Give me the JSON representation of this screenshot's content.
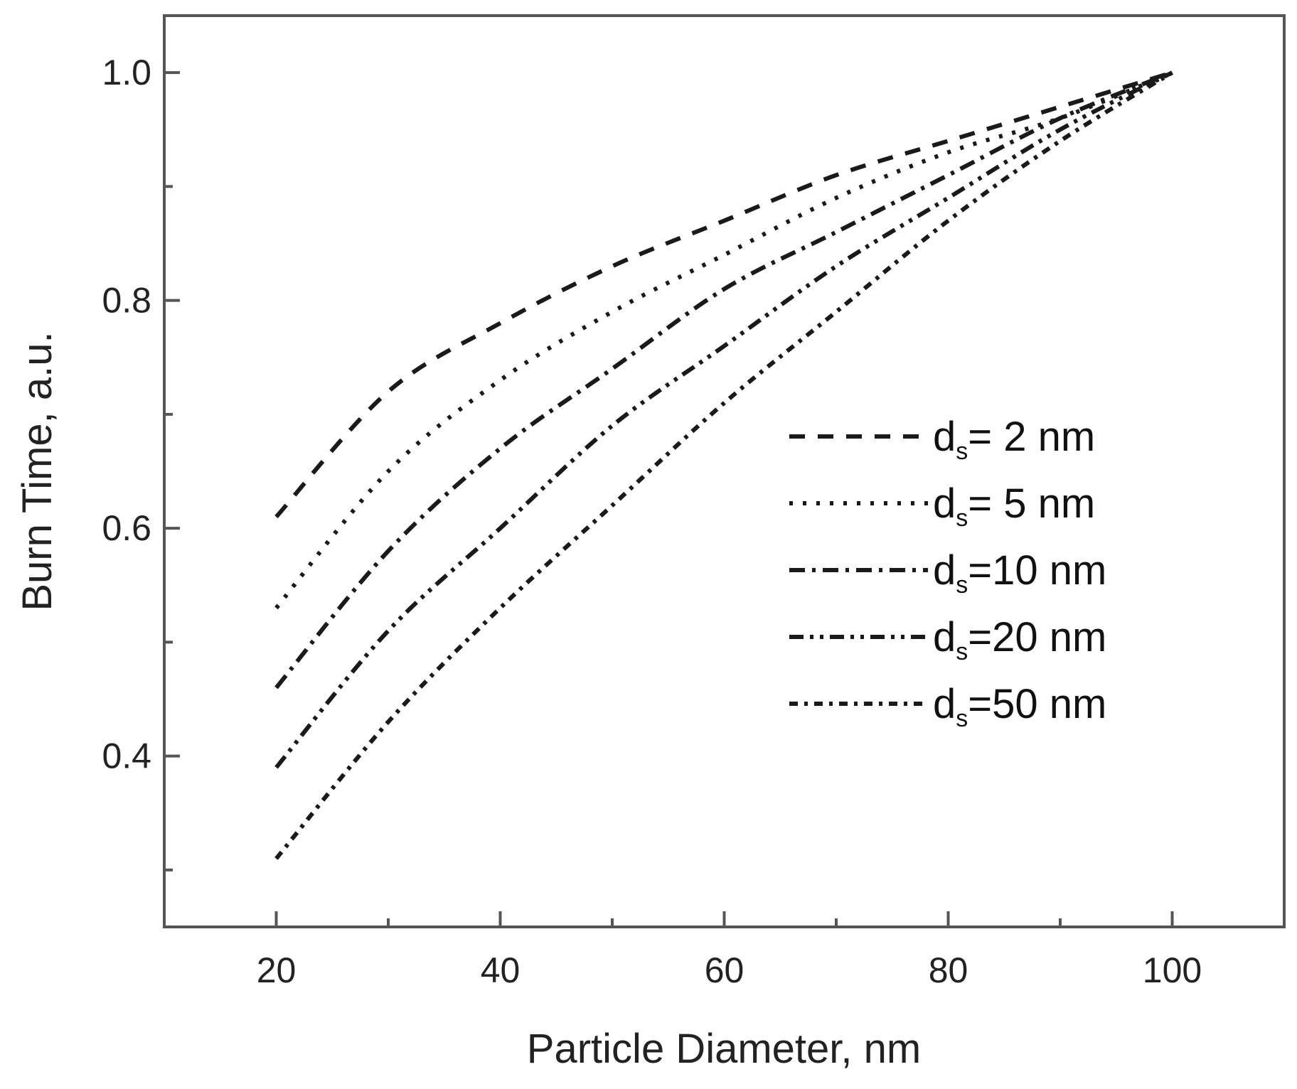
{
  "chart_data": {
    "type": "line",
    "title": "",
    "xlabel": "Particle Diameter, nm",
    "ylabel": "Burn Time, a.u.",
    "xlim": [
      10,
      110
    ],
    "ylim": [
      0.25,
      1.05
    ],
    "x_ticks": [
      20,
      40,
      60,
      80,
      100
    ],
    "x_tick_labels": [
      "20",
      "40",
      "60",
      "80",
      "100"
    ],
    "x_minor_ticks": [
      30,
      50,
      70,
      90
    ],
    "y_ticks": [
      0.4,
      0.6,
      0.8,
      1.0
    ],
    "y_tick_labels": [
      "0.4",
      "0.6",
      "0.8",
      "1.0"
    ],
    "y_minor_ticks": [
      0.3,
      0.5,
      0.7,
      0.9
    ],
    "grid": false,
    "legend_position": "center-right",
    "x": [
      20,
      30,
      40,
      50,
      60,
      70,
      80,
      90,
      100
    ],
    "series": [
      {
        "name": "d =  2 nm",
        "subscript": "s",
        "style": "dash",
        "values": [
          0.61,
          0.72,
          0.78,
          0.83,
          0.87,
          0.91,
          0.94,
          0.97,
          1.0
        ]
      },
      {
        "name": "d =  5 nm",
        "subscript": "s",
        "style": "dot",
        "values": [
          0.53,
          0.65,
          0.73,
          0.79,
          0.84,
          0.89,
          0.93,
          0.96,
          1.0
        ]
      },
      {
        "name": "d =10 nm",
        "subscript": "s",
        "style": "dashdot",
        "values": [
          0.46,
          0.58,
          0.67,
          0.74,
          0.81,
          0.86,
          0.91,
          0.96,
          1.0
        ]
      },
      {
        "name": "d =20 nm",
        "subscript": "s",
        "style": "dashdotdot",
        "values": [
          0.39,
          0.51,
          0.6,
          0.69,
          0.76,
          0.83,
          0.89,
          0.95,
          1.0
        ]
      },
      {
        "name": "d =50 nm",
        "subscript": "s",
        "style": "shortdashdot",
        "values": [
          0.31,
          0.43,
          0.53,
          0.62,
          0.71,
          0.79,
          0.87,
          0.94,
          1.0
        ]
      }
    ]
  }
}
